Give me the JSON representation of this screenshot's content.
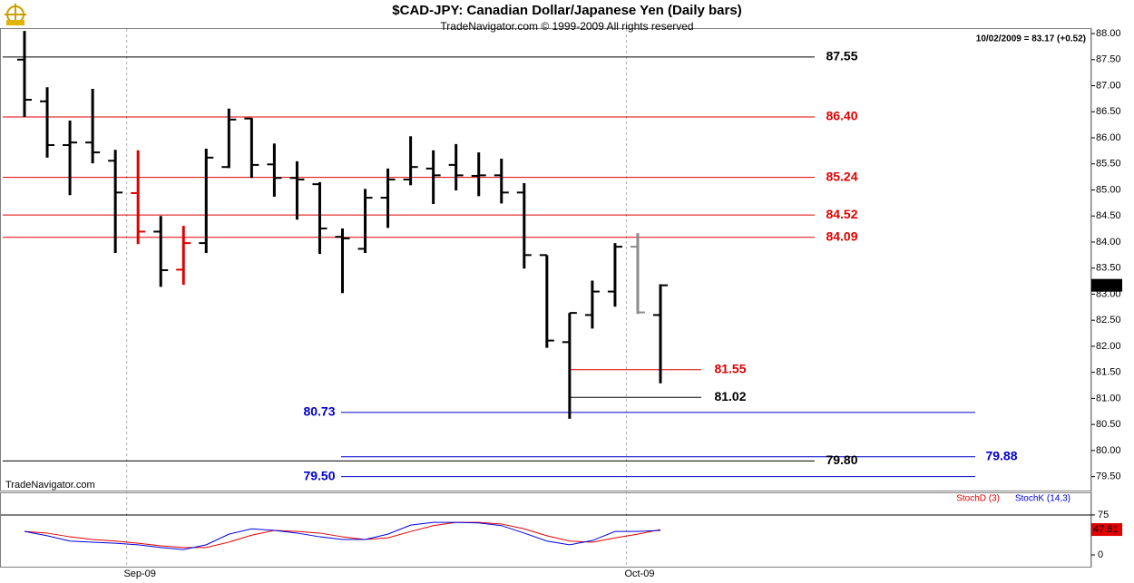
{
  "chart_data": [
    {
      "type": "ohlc",
      "title": "$CAD-JPY:  Canadian Dollar/Japanese Yen  (Daily bars)",
      "subtitle": "TradeNavigator.com © 1999-2009 All rights reserved",
      "info": "10/02/2009 = 83.17 (+0.52)",
      "watermark": "TradeNavigator.com",
      "categories": [
        null,
        null,
        null,
        null,
        null,
        "Sep-09",
        null,
        null,
        null,
        null,
        null,
        null,
        null,
        null,
        null,
        null,
        null,
        null,
        null,
        null,
        null,
        null,
        null,
        null,
        null,
        null,
        null,
        "Oct-09",
        null
      ],
      "open": [
        87.5,
        86.7,
        85.86,
        85.91,
        85.56,
        84.94,
        84.2,
        83.47,
        83.98,
        85.44,
        86.37,
        85.49,
        85.23,
        85.11,
        84.1,
        83.87,
        84.85,
        85.2,
        85.41,
        85.48,
        85.27,
        85.28,
        84.95,
        83.75,
        82.08,
        82.6,
        83.05,
        83.91,
        82.6
      ],
      "high": [
        88.05,
        86.97,
        86.33,
        86.94,
        85.77,
        85.76,
        84.5,
        84.31,
        85.79,
        86.56,
        86.38,
        85.89,
        85.55,
        85.15,
        84.26,
        85.02,
        85.41,
        86.03,
        85.76,
        85.88,
        85.72,
        85.6,
        85.13,
        83.75,
        82.64,
        83.26,
        83.98,
        84.17,
        83.19
      ],
      "low": [
        86.4,
        85.62,
        84.9,
        85.51,
        83.79,
        83.96,
        83.14,
        83.18,
        83.79,
        85.42,
        85.23,
        84.87,
        84.43,
        83.77,
        83.02,
        83.79,
        84.27,
        85.09,
        84.73,
        84.99,
        84.88,
        84.74,
        83.49,
        81.97,
        80.61,
        82.34,
        82.76,
        82.62,
        81.29
      ],
      "close": [
        86.73,
        85.86,
        85.91,
        85.72,
        84.95,
        84.2,
        83.46,
        83.98,
        85.62,
        86.35,
        85.48,
        85.23,
        85.2,
        84.26,
        84.07,
        84.85,
        85.2,
        85.44,
        85.28,
        85.28,
        85.28,
        84.95,
        83.75,
        82.11,
        82.64,
        83.05,
        83.91,
        82.65,
        83.17
      ],
      "colors": [
        "#000000",
        "#000000",
        "#000000",
        "#000000",
        "#000000",
        "#e00000",
        "#000000",
        "#e00000",
        "#000000",
        "#000000",
        "#000000",
        "#000000",
        "#000000",
        "#000000",
        "#000000",
        "#000000",
        "#000000",
        "#000000",
        "#000000",
        "#000000",
        "#000000",
        "#000000",
        "#000000",
        "#000000",
        "#000000",
        "#000000",
        "#000000",
        "#8c8c8c",
        "#000000"
      ],
      "ylim": [
        79.25,
        88.07
      ],
      "yticks": [
        {
          "value": 79.5,
          "label": "79.50"
        },
        {
          "value": 80,
          "label": "80.00"
        },
        {
          "value": 80.5,
          "label": "80.50"
        },
        {
          "value": 81,
          "label": "81.00"
        },
        {
          "value": 81.5,
          "label": "81.50"
        },
        {
          "value": 82,
          "label": "82.00"
        },
        {
          "value": 82.5,
          "label": "82.50"
        },
        {
          "value": 83,
          "label": "83.00"
        },
        {
          "value": 83.5,
          "label": "83.50"
        },
        {
          "value": 84,
          "label": "84.00"
        },
        {
          "value": 84.5,
          "label": "84.50"
        },
        {
          "value": 85,
          "label": "85.00"
        },
        {
          "value": 85.5,
          "label": "85.50"
        },
        {
          "value": 86,
          "label": "86.00"
        },
        {
          "value": 86.5,
          "label": "86.50"
        },
        {
          "value": 87,
          "label": "87.00"
        },
        {
          "value": 87.5,
          "label": "87.50"
        },
        {
          "value": 88,
          "label": "88.00"
        }
      ],
      "levels": [
        {
          "value": 87.55,
          "color": "#000000"
        },
        {
          "value": {
            "value": 86.4,
            "label": "86.40"
          },
          "color": "#e00000"
        },
        {
          "value": 85.24,
          "color": "#e00000"
        },
        {
          "value": 84.52,
          "color": "#e00000"
        },
        {
          "value": 84.09,
          "color": "#e00000"
        },
        {
          "value": 81.55,
          "color": "#e00000"
        },
        {
          "value": 81.02,
          "color": "#000000"
        },
        {
          "value": 80.73,
          "color": "#0000cc"
        },
        {
          "value": 79.88,
          "color": "#0000cc"
        },
        {
          "value": {
            "value": 79.8,
            "label": "79.80"
          },
          "color": "#000000"
        },
        {
          "value": {
            "value": 79.5,
            "label": "79.50"
          },
          "color": "#0000cc"
        }
      ]
    },
    {
      "type": "line",
      "series": [
        {
          "name": "StochD (3)",
          "color": "#e00000",
          "values": [
            44,
            41,
            34,
            29,
            26,
            22,
            17,
            14,
            14,
            24,
            37,
            46,
            44,
            41,
            34,
            29,
            32,
            44,
            55,
            61,
            61,
            58,
            49,
            36,
            26,
            24,
            32,
            39,
            47.61
          ]
        },
        {
          "name": "StochK (14,3)",
          "color": "#0000e0",
          "values": [
            44,
            36,
            26,
            24,
            22,
            19,
            14,
            10,
            19,
            39,
            49,
            46,
            41,
            34,
            29,
            29,
            39,
            56,
            61,
            61,
            60,
            55,
            41,
            26,
            19,
            27,
            44,
            44,
            46
          ]
        }
      ],
      "ylim": [
        -22,
        114
      ],
      "yticks": [
        0,
        75
      ],
      "grid": true
    }
  ]
}
